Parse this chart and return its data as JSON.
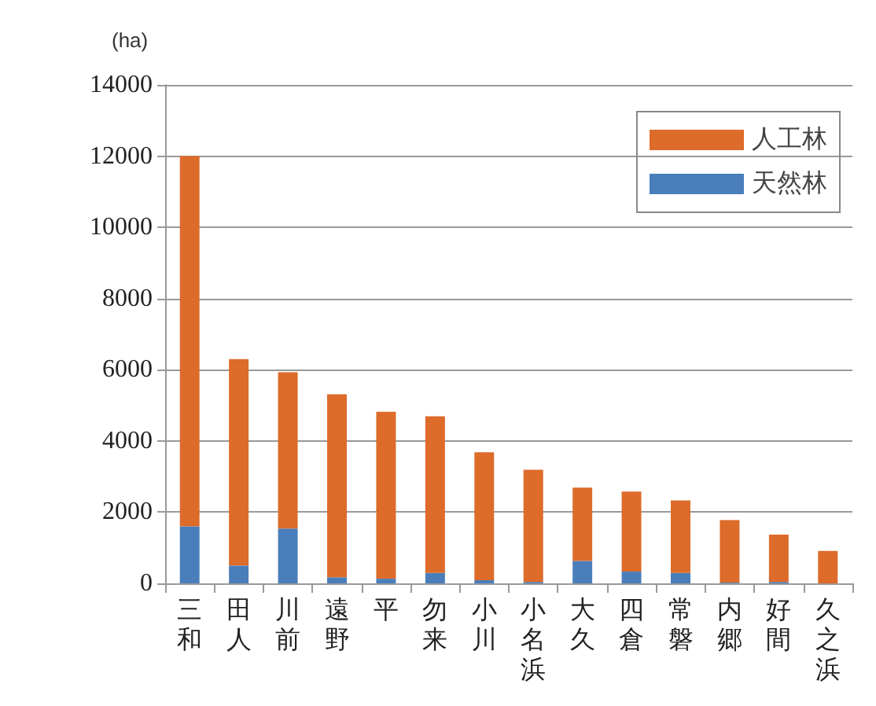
{
  "chart_data": {
    "type": "bar",
    "stacked": true,
    "ylabel": "(ha)",
    "categories": [
      "三和",
      "田人",
      "川前",
      "遠野",
      "平",
      "勿来",
      "小川",
      "小名浜",
      "大久",
      "四倉",
      "常磐",
      "内郷",
      "好間",
      "久之浜"
    ],
    "series": [
      {
        "name": "天然林",
        "color": "#4a7ebb",
        "values": [
          1600,
          500,
          1540,
          170,
          130,
          290,
          90,
          40,
          630,
          330,
          290,
          20,
          40,
          0
        ]
      },
      {
        "name": "人工林",
        "color": "#dd6b2a",
        "values": [
          10400,
          5800,
          4390,
          5140,
          4690,
          4400,
          3590,
          3150,
          2060,
          2250,
          2040,
          1760,
          1330,
          910
        ]
      }
    ],
    "ylim": [
      0,
      14000
    ],
    "yticks": [
      0,
      2000,
      4000,
      6000,
      8000,
      10000,
      12000,
      14000
    ],
    "grid": "y",
    "legend": "top right"
  }
}
